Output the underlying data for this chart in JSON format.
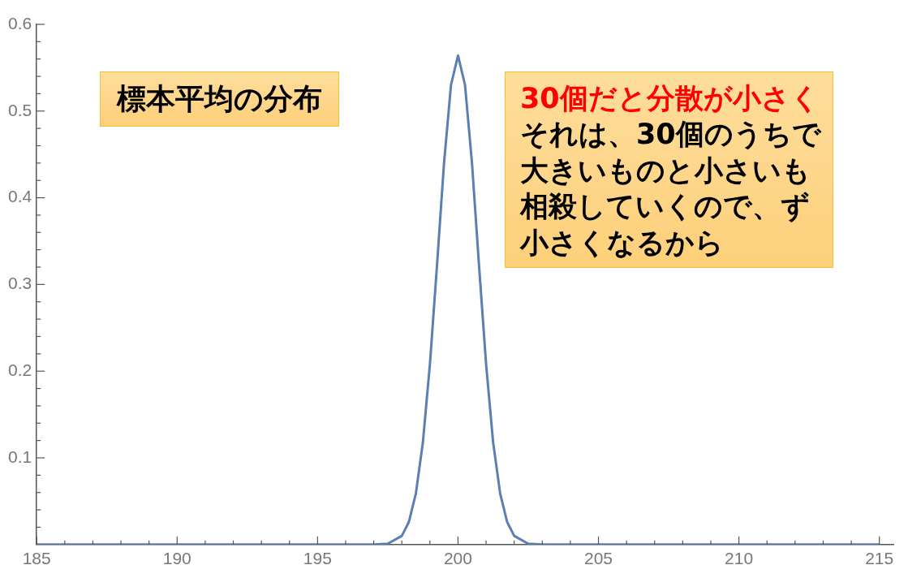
{
  "chart_data": {
    "type": "line",
    "annotations": [
      "標本平均の分布",
      "30個だと分散が小さく",
      "それは、30個のうちで",
      "大きいものと小さいも",
      "相殺していくので、ず",
      "小さくなるから"
    ],
    "x": [
      185,
      196,
      197,
      197.5,
      198,
      198.25,
      198.5,
      198.75,
      199,
      199.25,
      199.5,
      199.75,
      200,
      200.25,
      200.5,
      200.75,
      201,
      201.25,
      201.5,
      201.75,
      202,
      202.5,
      203,
      204,
      215
    ],
    "series": [
      {
        "color": "#5b7fb5",
        "values": [
          0,
          0,
          0,
          0.001,
          0.01,
          0.026,
          0.059,
          0.118,
          0.208,
          0.321,
          0.439,
          0.53,
          0.564,
          0.53,
          0.439,
          0.321,
          0.208,
          0.118,
          0.059,
          0.026,
          0.01,
          0.001,
          0,
          0,
          0
        ]
      }
    ],
    "xlim": [
      185,
      215.5
    ],
    "xticks": [
      185,
      {
        "value": 186,
        "label": null
      },
      {
        "value": 187,
        "label": null
      },
      {
        "value": 188,
        "label": null
      },
      {
        "value": 189,
        "label": null
      },
      190,
      {
        "value": 191,
        "label": null
      },
      {
        "value": 192,
        "label": null
      },
      {
        "value": 193,
        "label": null
      },
      {
        "value": 194,
        "label": null
      },
      195,
      {
        "value": 196,
        "label": null
      },
      {
        "value": 197,
        "label": null
      },
      {
        "value": 198,
        "label": null
      },
      {
        "value": 199,
        "label": null
      },
      200,
      {
        "value": 201,
        "label": null
      },
      {
        "value": 202,
        "label": null
      },
      {
        "value": 203,
        "label": null
      },
      {
        "value": 204,
        "label": null
      },
      205,
      {
        "value": 206,
        "label": null
      },
      {
        "value": 207,
        "label": null
      },
      {
        "value": 208,
        "label": null
      },
      {
        "value": 209,
        "label": null
      },
      210,
      {
        "value": 211,
        "label": null
      },
      {
        "value": 212,
        "label": null
      },
      {
        "value": 213,
        "label": null
      },
      {
        "value": 214,
        "label": null
      },
      215
    ],
    "ylim": [
      0,
      0.6
    ],
    "yticks": [
      {
        "value": 0.02,
        "label": null
      },
      {
        "value": 0.04,
        "label": null
      },
      {
        "value": 0.06,
        "label": null
      },
      {
        "value": 0.08,
        "label": null
      },
      0.1,
      {
        "value": 0.12,
        "label": null
      },
      {
        "value": 0.14,
        "label": null
      },
      {
        "value": 0.16,
        "label": null
      },
      {
        "value": 0.18,
        "label": null
      },
      0.2,
      {
        "value": 0.22,
        "label": null
      },
      {
        "value": 0.24,
        "label": null
      },
      {
        "value": 0.26,
        "label": null
      },
      {
        "value": 0.28,
        "label": null
      },
      0.3,
      {
        "value": 0.32,
        "label": null
      },
      {
        "value": 0.34,
        "label": null
      },
      {
        "value": 0.36,
        "label": null
      },
      {
        "value": 0.38,
        "label": null
      },
      0.4,
      {
        "value": 0.42,
        "label": null
      },
      {
        "value": 0.44,
        "label": null
      },
      {
        "value": 0.46,
        "label": null
      },
      {
        "value": 0.48,
        "label": null
      },
      0.5,
      {
        "value": 0.52,
        "label": null
      },
      {
        "value": 0.54,
        "label": null
      },
      {
        "value": 0.56,
        "label": null
      },
      {
        "value": 0.58,
        "label": null
      },
      0.6
    ],
    "grid": false,
    "legend": false,
    "marker": "none",
    "line_style": "solid"
  }
}
